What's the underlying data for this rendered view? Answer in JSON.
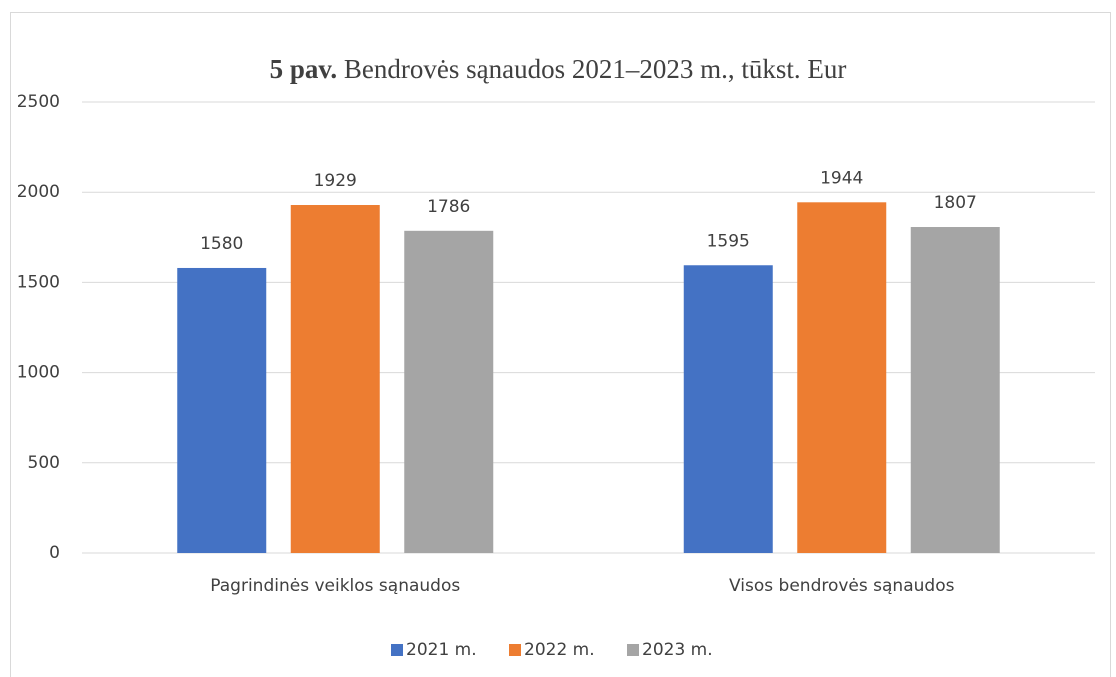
{
  "chart_data": {
    "type": "bar",
    "figure_label": "5 pav.",
    "title": "Bendrovės sąnaudos 2021–2023 m., tūkst. Eur",
    "categories": [
      "Pagrindinės veiklos sąnaudos",
      "Visos bendrovės sąnaudos"
    ],
    "series": [
      {
        "name": "2021 m.",
        "color": "#4472c4",
        "values": [
          1580,
          1595
        ]
      },
      {
        "name": "2022 m.",
        "color": "#ed7d31",
        "values": [
          1929,
          1944
        ]
      },
      {
        "name": "2023 m.",
        "color": "#a5a5a5",
        "values": [
          1786,
          1807
        ]
      }
    ],
    "ylim": [
      0,
      2500
    ],
    "yticks": [
      0,
      500,
      1000,
      1500,
      2000,
      2500
    ],
    "grid": true,
    "legend": "bottom"
  }
}
